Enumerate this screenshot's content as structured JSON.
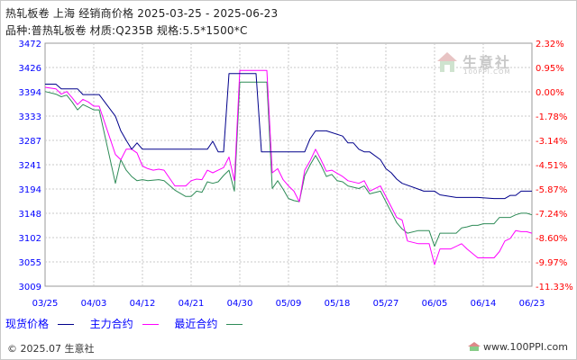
{
  "header": {
    "title": "热轧板卷 上海 经销商价格 2025-03-25 - 2025-06-23",
    "subtitle": "品种:普热轧板卷 材质:Q235B 规格:5.5*1500*C"
  },
  "watermark": {
    "text": "生意社",
    "sub": "100PPI.COM"
  },
  "footer": {
    "left": "© 2025.07 生意社",
    "right": "www.100PPI.com"
  },
  "colors": {
    "spot": "#00008b",
    "main": "#ff00ff",
    "recent": "#2e8b57",
    "axis_blue": "#0000ff",
    "axis_red": "#ff0000",
    "grid": "#c8c8c8"
  },
  "chart_data": {
    "type": "line",
    "x_ticks": [
      "03/25",
      "04/03",
      "04/12",
      "04/21",
      "04/30",
      "05/09",
      "05/18",
      "05/27",
      "06/05",
      "06/14",
      "06/23"
    ],
    "y_left_ticks": [
      "3472",
      "3426",
      "3394",
      "3333",
      "3287",
      "3241",
      "3194",
      "3148",
      "3102",
      "3055",
      "3009"
    ],
    "y_right_ticks": [
      "2.32%",
      "0.95%",
      "0.00%",
      "-1.78%",
      "-3.14%",
      "-4.51%",
      "-5.87%",
      "-7.24%",
      "-8.60%",
      "-9.97%",
      "-11.33%"
    ],
    "ylim": [
      3009,
      3472
    ],
    "x_domain": [
      "2025-03-25",
      "2025-06-23"
    ],
    "grid": true,
    "legend": {
      "position": "bottom-left"
    },
    "series": [
      {
        "name": "现货价格",
        "color": "#00008b",
        "points": [
          [
            "2025-03-25",
            3394
          ],
          [
            "2025-03-27",
            3394
          ],
          [
            "2025-03-28",
            3385
          ],
          [
            "2025-03-31",
            3385
          ],
          [
            "2025-04-01",
            3374
          ],
          [
            "2025-04-02",
            3374
          ],
          [
            "2025-04-03",
            3374
          ],
          [
            "2025-04-04",
            3374
          ],
          [
            "2025-04-07",
            3333
          ],
          [
            "2025-04-08",
            3305
          ],
          [
            "2025-04-09",
            3287
          ],
          [
            "2025-04-10",
            3270
          ],
          [
            "2025-04-11",
            3282
          ],
          [
            "2025-04-12",
            3270
          ],
          [
            "2025-04-15",
            3270
          ],
          [
            "2025-04-18",
            3270
          ],
          [
            "2025-04-21",
            3270
          ],
          [
            "2025-04-24",
            3270
          ],
          [
            "2025-04-25",
            3285
          ],
          [
            "2025-04-26",
            3265
          ],
          [
            "2025-04-27",
            3265
          ],
          [
            "2025-04-28",
            3414
          ],
          [
            "2025-04-29",
            3414
          ],
          [
            "2025-05-01",
            3414
          ],
          [
            "2025-05-02",
            3414
          ],
          [
            "2025-05-03",
            3414
          ],
          [
            "2025-05-04",
            3265
          ],
          [
            "2025-05-06",
            3265
          ],
          [
            "2025-05-08",
            3265
          ],
          [
            "2025-05-09",
            3265
          ],
          [
            "2025-05-12",
            3265
          ],
          [
            "2025-05-13",
            3290
          ],
          [
            "2025-05-14",
            3305
          ],
          [
            "2025-05-15",
            3305
          ],
          [
            "2025-05-16",
            3305
          ],
          [
            "2025-05-19",
            3295
          ],
          [
            "2025-05-20",
            3282
          ],
          [
            "2025-05-21",
            3282
          ],
          [
            "2025-05-22",
            3270
          ],
          [
            "2025-05-23",
            3265
          ],
          [
            "2025-05-24",
            3265
          ],
          [
            "2025-05-26",
            3250
          ],
          [
            "2025-05-27",
            3233
          ],
          [
            "2025-05-28",
            3225
          ],
          [
            "2025-05-29",
            3213
          ],
          [
            "2025-05-30",
            3205
          ],
          [
            "2025-06-02",
            3194
          ],
          [
            "2025-06-03",
            3190
          ],
          [
            "2025-06-05",
            3190
          ],
          [
            "2025-06-06",
            3183
          ],
          [
            "2025-06-09",
            3178
          ],
          [
            "2025-06-10",
            3178
          ],
          [
            "2025-06-11",
            3178
          ],
          [
            "2025-06-12",
            3178
          ],
          [
            "2025-06-13",
            3178
          ],
          [
            "2025-06-16",
            3176
          ],
          [
            "2025-06-17",
            3176
          ],
          [
            "2025-06-18",
            3176
          ],
          [
            "2025-06-19",
            3182
          ],
          [
            "2025-06-20",
            3182
          ],
          [
            "2025-06-21",
            3190
          ],
          [
            "2025-06-23",
            3190
          ]
        ]
      },
      {
        "name": "主力合约",
        "color": "#ff00ff",
        "points": [
          [
            "2025-03-25",
            3388
          ],
          [
            "2025-03-27",
            3385
          ],
          [
            "2025-03-28",
            3375
          ],
          [
            "2025-03-29",
            3380
          ],
          [
            "2025-03-30",
            3368
          ],
          [
            "2025-03-31",
            3355
          ],
          [
            "2025-04-01",
            3365
          ],
          [
            "2025-04-02",
            3360
          ],
          [
            "2025-04-03",
            3352
          ],
          [
            "2025-04-04",
            3352
          ],
          [
            "2025-04-07",
            3260
          ],
          [
            "2025-04-08",
            3250
          ],
          [
            "2025-04-09",
            3270
          ],
          [
            "2025-04-10",
            3270
          ],
          [
            "2025-04-11",
            3263
          ],
          [
            "2025-04-12",
            3238
          ],
          [
            "2025-04-13",
            3233
          ],
          [
            "2025-04-14",
            3230
          ],
          [
            "2025-04-15",
            3232
          ],
          [
            "2025-04-16",
            3230
          ],
          [
            "2025-04-18",
            3200
          ],
          [
            "2025-04-20",
            3200
          ],
          [
            "2025-04-21",
            3210
          ],
          [
            "2025-04-22",
            3213
          ],
          [
            "2025-04-23",
            3212
          ],
          [
            "2025-04-24",
            3230
          ],
          [
            "2025-04-25",
            3225
          ],
          [
            "2025-04-26",
            3230
          ],
          [
            "2025-04-27",
            3235
          ],
          [
            "2025-04-28",
            3255
          ],
          [
            "2025-04-29",
            3210
          ],
          [
            "2025-04-30",
            3420
          ],
          [
            "2025-05-01",
            3420
          ],
          [
            "2025-05-03",
            3420
          ],
          [
            "2025-05-05",
            3420
          ],
          [
            "2025-05-06",
            3225
          ],
          [
            "2025-05-07",
            3233
          ],
          [
            "2025-05-08",
            3212
          ],
          [
            "2025-05-09",
            3200
          ],
          [
            "2025-05-10",
            3190
          ],
          [
            "2025-05-11",
            3170
          ],
          [
            "2025-05-12",
            3230
          ],
          [
            "2025-05-13",
            3248
          ],
          [
            "2025-05-14",
            3270
          ],
          [
            "2025-05-15",
            3250
          ],
          [
            "2025-05-16",
            3228
          ],
          [
            "2025-05-17",
            3230
          ],
          [
            "2025-05-19",
            3218
          ],
          [
            "2025-05-20",
            3210
          ],
          [
            "2025-05-22",
            3205
          ],
          [
            "2025-05-23",
            3210
          ],
          [
            "2025-05-24",
            3190
          ],
          [
            "2025-05-26",
            3200
          ],
          [
            "2025-05-28",
            3160
          ],
          [
            "2025-05-29",
            3140
          ],
          [
            "2025-05-30",
            3135
          ],
          [
            "2025-05-31",
            3095
          ],
          [
            "2025-06-02",
            3090
          ],
          [
            "2025-06-04",
            3090
          ],
          [
            "2025-06-05",
            3050
          ],
          [
            "2025-06-06",
            3080
          ],
          [
            "2025-06-08",
            3080
          ],
          [
            "2025-06-10",
            3090
          ],
          [
            "2025-06-11",
            3080
          ],
          [
            "2025-06-13",
            3063
          ],
          [
            "2025-06-16",
            3063
          ],
          [
            "2025-06-17",
            3075
          ],
          [
            "2025-06-18",
            3095
          ],
          [
            "2025-06-19",
            3100
          ],
          [
            "2025-06-20",
            3115
          ],
          [
            "2025-06-21",
            3113
          ],
          [
            "2025-06-22",
            3113
          ],
          [
            "2025-06-23",
            3110
          ]
        ]
      },
      {
        "name": "最近合约",
        "color": "#2e8b57",
        "points": [
          [
            "2025-03-25",
            3380
          ],
          [
            "2025-03-27",
            3375
          ],
          [
            "2025-03-28",
            3370
          ],
          [
            "2025-03-29",
            3373
          ],
          [
            "2025-03-30",
            3360
          ],
          [
            "2025-03-31",
            3345
          ],
          [
            "2025-04-01",
            3355
          ],
          [
            "2025-04-02",
            3350
          ],
          [
            "2025-04-03",
            3345
          ],
          [
            "2025-04-04",
            3345
          ],
          [
            "2025-04-07",
            3205
          ],
          [
            "2025-04-08",
            3250
          ],
          [
            "2025-04-09",
            3230
          ],
          [
            "2025-04-10",
            3218
          ],
          [
            "2025-04-11",
            3210
          ],
          [
            "2025-04-12",
            3212
          ],
          [
            "2025-04-13",
            3210
          ],
          [
            "2025-04-15",
            3212
          ],
          [
            "2025-04-16",
            3210
          ],
          [
            "2025-04-18",
            3192
          ],
          [
            "2025-04-20",
            3180
          ],
          [
            "2025-04-21",
            3180
          ],
          [
            "2025-04-22",
            3190
          ],
          [
            "2025-04-23",
            3188
          ],
          [
            "2025-04-24",
            3208
          ],
          [
            "2025-04-25",
            3205
          ],
          [
            "2025-04-26",
            3208
          ],
          [
            "2025-04-27",
            3220
          ],
          [
            "2025-04-28",
            3230
          ],
          [
            "2025-04-29",
            3190
          ],
          [
            "2025-04-30",
            3398
          ],
          [
            "2025-05-01",
            3398
          ],
          [
            "2025-05-03",
            3398
          ],
          [
            "2025-05-05",
            3398
          ],
          [
            "2025-05-06",
            3195
          ],
          [
            "2025-05-07",
            3210
          ],
          [
            "2025-05-08",
            3194
          ],
          [
            "2025-05-09",
            3176
          ],
          [
            "2025-05-10",
            3172
          ],
          [
            "2025-05-11",
            3170
          ],
          [
            "2025-05-12",
            3220
          ],
          [
            "2025-05-13",
            3240
          ],
          [
            "2025-05-14",
            3258
          ],
          [
            "2025-05-15",
            3240
          ],
          [
            "2025-05-16",
            3218
          ],
          [
            "2025-05-17",
            3222
          ],
          [
            "2025-05-18",
            3210
          ],
          [
            "2025-05-19",
            3208
          ],
          [
            "2025-05-20",
            3200
          ],
          [
            "2025-05-22",
            3195
          ],
          [
            "2025-05-23",
            3200
          ],
          [
            "2025-05-24",
            3185
          ],
          [
            "2025-05-26",
            3190
          ],
          [
            "2025-05-28",
            3150
          ],
          [
            "2025-05-29",
            3130
          ],
          [
            "2025-05-30",
            3118
          ],
          [
            "2025-05-31",
            3110
          ],
          [
            "2025-06-02",
            3115
          ],
          [
            "2025-06-04",
            3115
          ],
          [
            "2025-06-05",
            3085
          ],
          [
            "2025-06-06",
            3110
          ],
          [
            "2025-06-09",
            3110
          ],
          [
            "2025-06-10",
            3120
          ],
          [
            "2025-06-11",
            3122
          ],
          [
            "2025-06-12",
            3125
          ],
          [
            "2025-06-13",
            3125
          ],
          [
            "2025-06-14",
            3128
          ],
          [
            "2025-06-16",
            3128
          ],
          [
            "2025-06-17",
            3140
          ],
          [
            "2025-06-19",
            3140
          ],
          [
            "2025-06-20",
            3145
          ],
          [
            "2025-06-21",
            3148
          ],
          [
            "2025-06-22",
            3148
          ],
          [
            "2025-06-23",
            3145
          ]
        ]
      }
    ]
  }
}
